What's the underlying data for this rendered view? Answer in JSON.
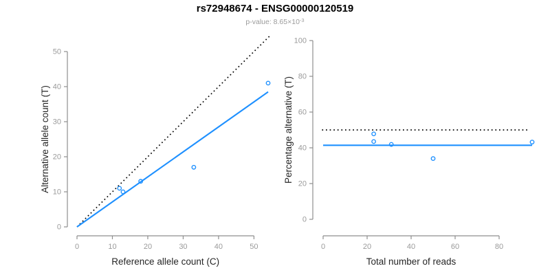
{
  "header": {
    "title": "rs72948674 - ENSG00000120519",
    "p_value_base": "p-value: 8.65×10",
    "p_value_exponent": "-3"
  },
  "colors": {
    "accent_blue": "#1E90FF",
    "axis_gray": "#8e8e8e",
    "tick_label_gray": "#9a9a9a",
    "axis_title_color": "#262626",
    "reference_line_black": "#000000"
  },
  "chart_data": [
    {
      "type": "scatter",
      "name": "allelic-counts",
      "xlabel": "Reference allele count (C)",
      "ylabel": "Alternative allele count (T)",
      "xlim": [
        0,
        55
      ],
      "ylim": [
        0,
        55
      ],
      "xticks": [
        0,
        10,
        20,
        30,
        40,
        50
      ],
      "yticks": [
        0,
        10,
        20,
        30,
        40,
        50
      ],
      "grid": false,
      "legend": "none",
      "points": [
        [
          12,
          11
        ],
        [
          13,
          10
        ],
        [
          18,
          13
        ],
        [
          33,
          17
        ],
        [
          54,
          41
        ]
      ],
      "lines": [
        {
          "name": "identity",
          "style": "dotted",
          "color": "#000000",
          "from": [
            0,
            0
          ],
          "to": [
            54.5,
            54.5
          ]
        },
        {
          "name": "regression",
          "style": "solid",
          "color": "#1E90FF",
          "from": [
            0,
            0
          ],
          "to": [
            54,
            38.5
          ]
        }
      ]
    },
    {
      "type": "scatter",
      "name": "percentage-alternative",
      "xlabel": "Total number of reads",
      "ylabel": "Percentage alternative (T)",
      "xlim": [
        0,
        95
      ],
      "ylim": [
        0,
        100
      ],
      "xticks": [
        0,
        20,
        40,
        60,
        80
      ],
      "yticks": [
        0,
        20,
        40,
        60,
        80,
        100
      ],
      "grid": false,
      "legend": "none",
      "points": [
        [
          23,
          47.8
        ],
        [
          23,
          43.5
        ],
        [
          31,
          41.9
        ],
        [
          50,
          34
        ],
        [
          95,
          43.2
        ]
      ],
      "lines": [
        {
          "name": "fifty-percent",
          "style": "dotted",
          "color": "#000000",
          "from": [
            -0.5,
            50
          ],
          "to": [
            93.5,
            50
          ]
        },
        {
          "name": "mean-percentage",
          "style": "solid",
          "color": "#1E90FF",
          "from": [
            0,
            41.4
          ],
          "to": [
            95,
            41.4
          ]
        }
      ]
    }
  ]
}
